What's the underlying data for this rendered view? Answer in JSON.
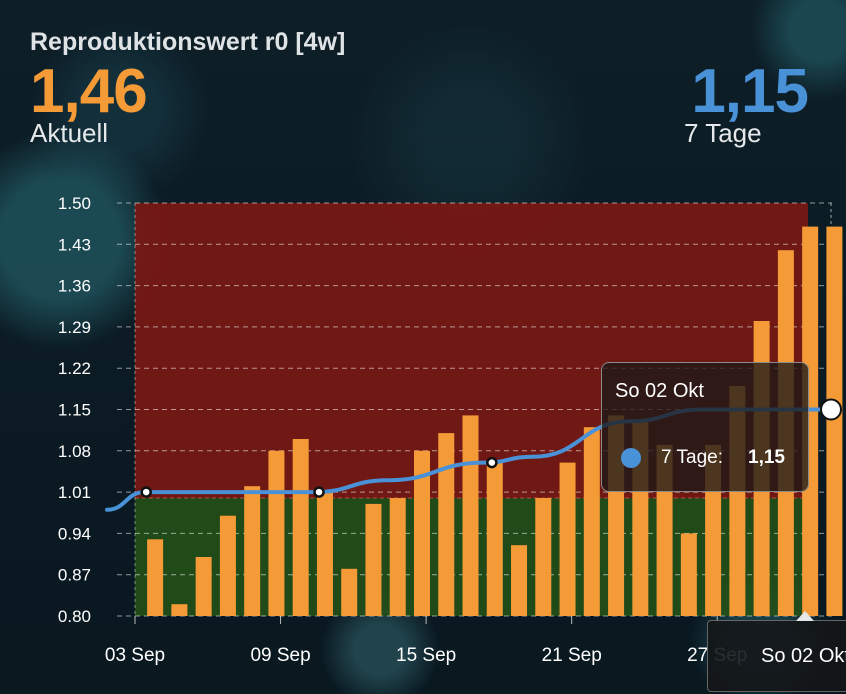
{
  "card": {
    "title": "Reproduktionswert r0 [4w]",
    "current_value": "1,46",
    "current_label": "Aktuell",
    "avg_value": "1,15",
    "avg_label": "7 Tage"
  },
  "colors": {
    "bars": "#f49b37",
    "line": "#4a92d8",
    "above_threshold": "#7a1812",
    "below_threshold": "#245018"
  },
  "tooltip": {
    "date": "So 02 Okt",
    "series_label": "7 Tage:",
    "series_value": "1,15"
  },
  "x_crosshair_label": "So 02 Okt",
  "chart_data": {
    "type": "bar",
    "title": "Reproduktionswert r0 [4w]",
    "threshold": 1.0,
    "ylim": [
      0.8,
      1.5
    ],
    "yticks": [
      "1.50",
      "1.43",
      "1.36",
      "1.29",
      "1.22",
      "1.15",
      "1.08",
      "1.01",
      "0.94",
      "0.87",
      "0.80"
    ],
    "xticks": [
      "03 Sep",
      "09 Sep",
      "15 Sep",
      "21 Sep",
      "27 Sep"
    ],
    "grid": true,
    "categories": [
      "04 Sep",
      "05 Sep",
      "06 Sep",
      "07 Sep",
      "08 Sep",
      "09 Sep",
      "10 Sep",
      "11 Sep",
      "12 Sep",
      "13 Sep",
      "14 Sep",
      "15 Sep",
      "16 Sep",
      "17 Sep",
      "18 Sep",
      "19 Sep",
      "20 Sep",
      "21 Sep",
      "22 Sep",
      "23 Sep",
      "24 Sep",
      "25 Sep",
      "26 Sep",
      "27 Sep",
      "28 Sep",
      "29 Sep",
      "30 Sep",
      "01 Okt",
      "02 Okt"
    ],
    "series": [
      {
        "name": "r0",
        "type": "bar",
        "values": [
          0.93,
          0.82,
          0.9,
          0.97,
          1.02,
          1.08,
          1.1,
          1.01,
          0.88,
          0.99,
          1.0,
          1.08,
          1.11,
          1.14,
          1.06,
          0.92,
          1.0,
          1.06,
          1.12,
          1.14,
          1.13,
          1.09,
          0.94,
          1.09,
          1.19,
          1.3,
          1.42,
          1.46,
          1.46
        ]
      },
      {
        "name": "7 Tage",
        "type": "line",
        "x": [
          "02 Sep",
          "04 Sep",
          "08 Sep",
          "11 Sep",
          "14 Sep",
          "18 Sep",
          "20 Sep",
          "24 Sep",
          "27 Sep",
          "30 Sep",
          "02 Okt",
          "03 Okt"
        ],
        "values": [
          0.98,
          1.01,
          1.01,
          1.01,
          1.03,
          1.06,
          1.07,
          1.13,
          1.15,
          1.15,
          1.15,
          1.15
        ]
      }
    ]
  }
}
